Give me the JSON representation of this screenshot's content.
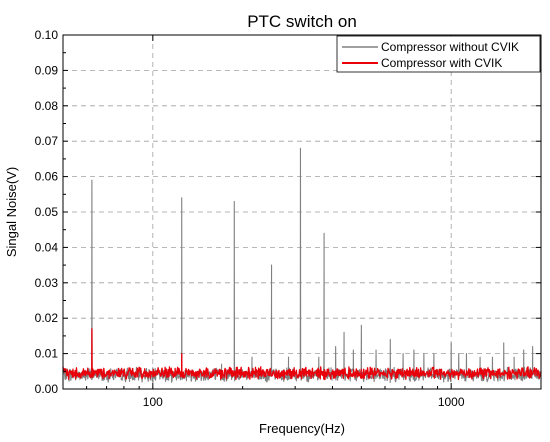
{
  "chart_data": {
    "type": "line",
    "title": "PTC switch on",
    "xlabel": "Frequency(Hz)",
    "ylabel": "Singal Noise(V)",
    "xscale": "log",
    "xlim": [
      50,
      2000
    ],
    "ylim": [
      0,
      0.1
    ],
    "x_ticks": [
      100,
      1000
    ],
    "x_tick_labels": [
      "100",
      "1000"
    ],
    "y_ticks": [
      0.0,
      0.01,
      0.02,
      0.03,
      0.04,
      0.05,
      0.06,
      0.07,
      0.08,
      0.09,
      0.1
    ],
    "y_tick_labels": [
      "0.00",
      "0.01",
      "0.02",
      "0.03",
      "0.04",
      "0.05",
      "0.06",
      "0.07",
      "0.08",
      "0.09",
      "0.10"
    ],
    "grid": true,
    "legend_position": "top-right",
    "series": [
      {
        "name": "Compressor without CVIK",
        "color": "#808080",
        "baseline": 0.004,
        "peaks": [
          {
            "x": 62.5,
            "y": 0.059
          },
          {
            "x": 100,
            "y": 0.006
          },
          {
            "x": 125,
            "y": 0.054
          },
          {
            "x": 170,
            "y": 0.007
          },
          {
            "x": 187.5,
            "y": 0.053
          },
          {
            "x": 215,
            "y": 0.009
          },
          {
            "x": 250,
            "y": 0.035
          },
          {
            "x": 285,
            "y": 0.009
          },
          {
            "x": 312.5,
            "y": 0.068
          },
          {
            "x": 360,
            "y": 0.009
          },
          {
            "x": 375,
            "y": 0.044
          },
          {
            "x": 410,
            "y": 0.012
          },
          {
            "x": 437.5,
            "y": 0.016
          },
          {
            "x": 470,
            "y": 0.011
          },
          {
            "x": 500,
            "y": 0.018
          },
          {
            "x": 560,
            "y": 0.011
          },
          {
            "x": 625,
            "y": 0.014
          },
          {
            "x": 690,
            "y": 0.01
          },
          {
            "x": 750,
            "y": 0.011
          },
          {
            "x": 810,
            "y": 0.01
          },
          {
            "x": 875,
            "y": 0.01
          },
          {
            "x": 1000,
            "y": 0.013
          },
          {
            "x": 1060,
            "y": 0.01
          },
          {
            "x": 1125,
            "y": 0.01
          },
          {
            "x": 1250,
            "y": 0.009
          },
          {
            "x": 1375,
            "y": 0.009
          },
          {
            "x": 1500,
            "y": 0.013
          },
          {
            "x": 1625,
            "y": 0.009
          },
          {
            "x": 1750,
            "y": 0.011
          },
          {
            "x": 1875,
            "y": 0.012
          }
        ]
      },
      {
        "name": "Compressor with CVIK",
        "color": "#e8000b",
        "baseline": 0.0045,
        "peaks": [
          {
            "x": 62.5,
            "y": 0.017
          },
          {
            "x": 125,
            "y": 0.01
          }
        ]
      }
    ]
  }
}
